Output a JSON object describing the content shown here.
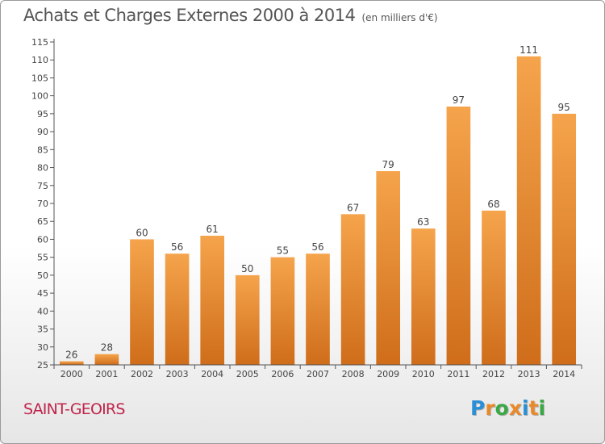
{
  "header": {
    "title": "Achats et Charges Externes 2000 à 2014",
    "subtitle": "(en milliers d'€)"
  },
  "footer": {
    "commune": "SAINT-GEOIRS",
    "logo": {
      "letters": [
        "P",
        "r",
        "o",
        "x",
        "i",
        "t",
        "i"
      ],
      "colors": [
        "#2a8fd6",
        "#e8892b",
        "#3aa845",
        "#e8892b",
        "#2a8fd6",
        "#e8892b",
        "#3aa845"
      ]
    }
  },
  "colors": {
    "bar_light": "#f5a44c",
    "bar_dark": "#cf6d1a",
    "axis": "#555555",
    "text": "#444444"
  },
  "chart_data": {
    "type": "bar",
    "title": "Achats et Charges Externes 2000 à 2014",
    "subtitle": "(en milliers d'€)",
    "categories": [
      "2000",
      "2001",
      "2002",
      "2003",
      "2004",
      "2005",
      "2006",
      "2007",
      "2008",
      "2009",
      "2010",
      "2011",
      "2012",
      "2013",
      "2014"
    ],
    "values": [
      26,
      28,
      60,
      56,
      61,
      50,
      55,
      56,
      67,
      79,
      63,
      97,
      68,
      111,
      95
    ],
    "ylim": [
      25,
      115
    ],
    "yticks": [
      25,
      30,
      35,
      40,
      45,
      50,
      55,
      60,
      65,
      70,
      75,
      80,
      85,
      90,
      95,
      100,
      105,
      110,
      115
    ],
    "grid": false,
    "xlabel": "",
    "ylabel": ""
  }
}
